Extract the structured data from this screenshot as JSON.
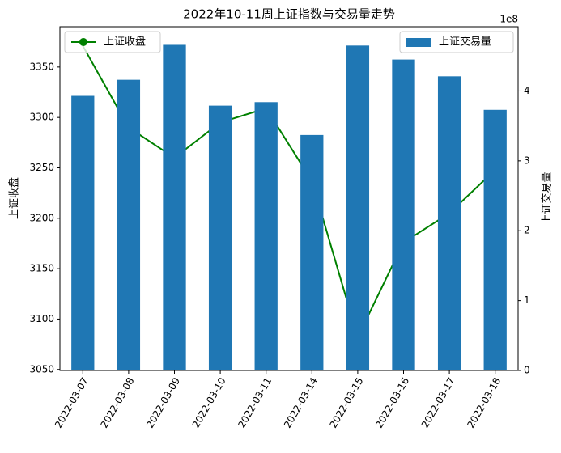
{
  "chart_data": {
    "type": "bar-line",
    "title": "2022年10-11周上证指数与交易量走势",
    "categories": [
      "2022-03-07",
      "2022-03-08",
      "2022-03-09",
      "2022-03-10",
      "2022-03-11",
      "2022-03-14",
      "2022-03-15",
      "2022-03-16",
      "2022-03-17",
      "2022-03-18"
    ],
    "series": [
      {
        "name": "上证收盘",
        "type": "line",
        "color": "#008000",
        "axis": "y",
        "values": [
          3371,
          3290,
          3260,
          3295,
          3309,
          3237,
          3082,
          3176,
          3205,
          3248
        ]
      },
      {
        "name": "上证交易量",
        "type": "bar",
        "color": "#1f77b4",
        "axis": "y2",
        "values": [
          393000000,
          416000000,
          466000000,
          379000000,
          384000000,
          337000000,
          465000000,
          445000000,
          421000000,
          373000000
        ]
      }
    ],
    "ylabel": "上证收盘",
    "y2label": "上证交易量",
    "y2_offset_label": "1e8",
    "ylim": [
      3049,
      3390
    ],
    "yticks": [
      3050,
      3100,
      3150,
      3200,
      3250,
      3300,
      3350
    ],
    "y2lim": [
      0,
      492000000
    ],
    "y2ticks": [
      {
        "value": 0,
        "label": "0"
      },
      {
        "value": 100000000,
        "label": "1"
      },
      {
        "value": 200000000,
        "label": "2"
      },
      {
        "value": 300000000,
        "label": "3"
      },
      {
        "value": 400000000,
        "label": "4"
      }
    ],
    "legend": {
      "y": "upper left",
      "y2": "upper right"
    }
  }
}
